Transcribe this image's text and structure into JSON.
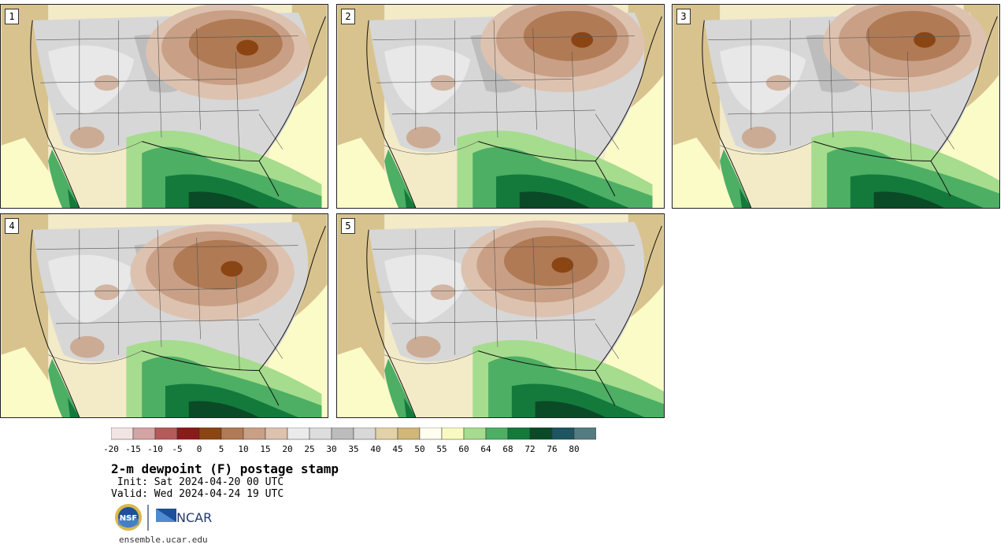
{
  "panels": [
    {
      "label": "1"
    },
    {
      "label": "2"
    },
    {
      "label": "3"
    },
    {
      "label": "4"
    },
    {
      "label": "5"
    }
  ],
  "colorbar": {
    "colors": [
      "#f3e4e4",
      "#d4a3a3",
      "#b45a5a",
      "#8b1a1a",
      "#8b4513",
      "#b07a55",
      "#c9a085",
      "#ddc2b0",
      "#ebebeb",
      "#dddddd",
      "#bcbcbc",
      "#d8d8d8",
      "#e3d2a8",
      "#d2b67a",
      "#fffff0",
      "#fafac0",
      "#a6dc8e",
      "#4caf64",
      "#137a3c",
      "#0b4a26",
      "#1d5560",
      "#547c80"
    ],
    "ticks": [
      "-20",
      "-15",
      "-10",
      "-5",
      "0",
      "5",
      "10",
      "15",
      "20",
      "25",
      "30",
      "35",
      "40",
      "45",
      "50",
      "55",
      "60",
      "64",
      "68",
      "72",
      "76",
      "80"
    ]
  },
  "title": "2-m dewpoint (F) postage stamp",
  "init_line": " Init: Sat 2024-04-20 00 UTC",
  "valid_line": "Valid: Wed 2024-04-24 19 UTC",
  "logos": {
    "nsf": "NSF",
    "ncar": "NCAR"
  },
  "website": "ensemble.ucar.edu"
}
